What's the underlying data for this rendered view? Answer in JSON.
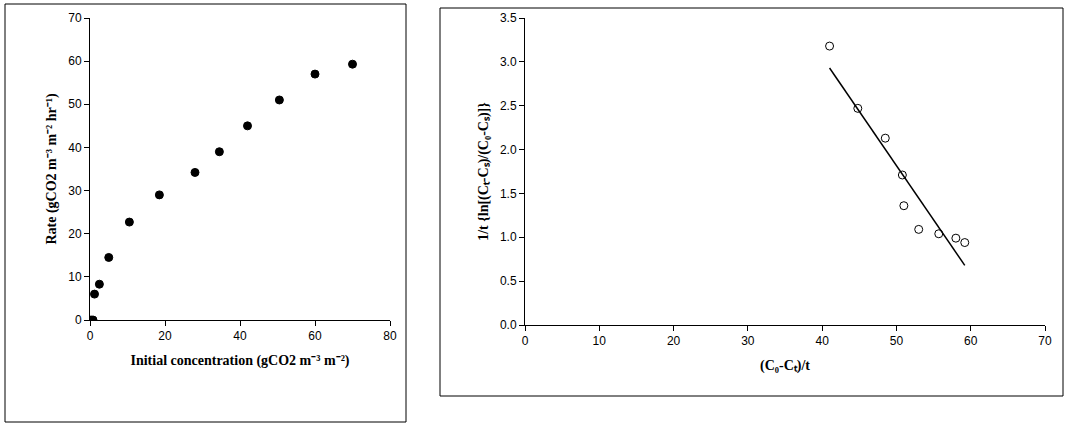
{
  "chart_data": [
    {
      "type": "scatter",
      "x_label": "Initial concentration (gCO2 m⁻³ m⁻²)",
      "y_label": "Rate (gCO2 m⁻³ m⁻² hr⁻¹)",
      "series": [
        {
          "type": "scatter",
          "marker": "circle",
          "color": "#000000",
          "x": [
            0.3,
            0.8,
            1.2,
            2.5,
            5,
            10.5,
            18.5,
            28,
            34.5,
            42,
            50.5,
            60,
            70
          ],
          "values": [
            0,
            0,
            6,
            8.3,
            14.5,
            22.7,
            29,
            34.2,
            39,
            45,
            51,
            57,
            59.3
          ]
        }
      ],
      "xlim": [
        0,
        80
      ],
      "xticks": [
        0,
        20,
        40,
        60,
        80
      ],
      "ylim": [
        0,
        70
      ],
      "yticks": [
        0,
        10,
        20,
        30,
        40,
        50,
        60,
        70
      ],
      "grid": false
    },
    {
      "type": "scatter",
      "x_label": "(C₀-Cₜ)/t",
      "y_label": "1/t {ln[(Cₜ-Cₛ)/(C₀-Cₛ)]}",
      "series": [
        {
          "type": "scatter",
          "marker": "circle-open",
          "color": "#000000",
          "x": [
            41,
            44.8,
            48.5,
            50.8,
            51,
            53,
            55.7,
            58,
            59.2
          ],
          "values": [
            3.18,
            2.47,
            2.13,
            1.71,
            1.36,
            1.09,
            1.04,
            0.99,
            0.94
          ]
        },
        {
          "type": "line",
          "line_style": "solid",
          "color": "#000000",
          "x": [
            41,
            59.2
          ],
          "values": [
            2.93,
            0.68
          ]
        }
      ],
      "xlim": [
        0,
        70
      ],
      "xticks": [
        0,
        10,
        20,
        30,
        40,
        50,
        60,
        70
      ],
      "ylim": [
        0,
        3.5
      ],
      "yticks": [
        {
          "value": 0,
          "label": "0.0"
        },
        0.5,
        {
          "value": 1,
          "label": "1.0"
        },
        1.5,
        {
          "value": 2,
          "label": "2.0"
        },
        2.5,
        {
          "value": 3,
          "label": "3.0"
        },
        3.5
      ],
      "grid": false
    }
  ]
}
